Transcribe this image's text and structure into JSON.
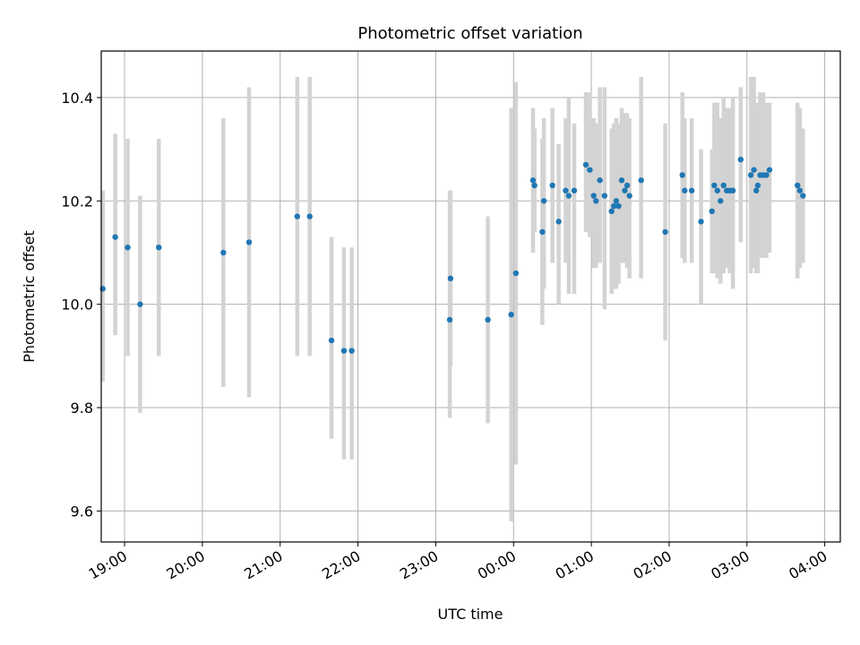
{
  "chart_data": {
    "type": "scatter",
    "title": "Photometric offset variation",
    "xlabel": "UTC time",
    "ylabel": "Photometric offset",
    "grid": true,
    "x_unit": "hours since 18:00 UTC",
    "xlim": [
      0.7,
      10.2
    ],
    "ylim": [
      9.54,
      10.49
    ],
    "x_ticks": [
      {
        "value": 1,
        "label": "19:00"
      },
      {
        "value": 2,
        "label": "20:00"
      },
      {
        "value": 3,
        "label": "21:00"
      },
      {
        "value": 4,
        "label": "22:00"
      },
      {
        "value": 5,
        "label": "23:00"
      },
      {
        "value": 6,
        "label": "00:00"
      },
      {
        "value": 7,
        "label": "01:00"
      },
      {
        "value": 8,
        "label": "02:00"
      },
      {
        "value": 9,
        "label": "03:00"
      },
      {
        "value": 10,
        "label": "04:00"
      }
    ],
    "y_ticks": [
      {
        "value": 9.6,
        "label": "9.6"
      },
      {
        "value": 9.8,
        "label": "9.8"
      },
      {
        "value": 10.0,
        "label": "10.0"
      },
      {
        "value": 10.2,
        "label": "10.2"
      },
      {
        "value": 10.4,
        "label": "10.4"
      }
    ],
    "series": [
      {
        "name": "offset",
        "marker_color": "#1f77b4",
        "errorbar_color": "#d3d3d3",
        "x": [
          0.72,
          0.88,
          1.04,
          1.2,
          1.44,
          2.27,
          2.6,
          3.22,
          3.38,
          3.66,
          3.82,
          3.92,
          5.18,
          5.19,
          5.67,
          5.97,
          6.03,
          6.25,
          6.27,
          6.37,
          6.39,
          6.5,
          6.58,
          6.67,
          6.71,
          6.78,
          6.93,
          6.98,
          7.03,
          7.06,
          7.11,
          7.17,
          7.26,
          7.29,
          7.32,
          7.35,
          7.39,
          7.43,
          7.46,
          7.49,
          7.64,
          7.95,
          8.17,
          8.2,
          8.29,
          8.41,
          8.55,
          8.58,
          8.62,
          8.66,
          8.7,
          8.74,
          8.78,
          8.82,
          8.92,
          9.05,
          9.09,
          9.12,
          9.14,
          9.17,
          9.21,
          9.25,
          9.29,
          9.65,
          9.68,
          9.72
        ],
        "y": [
          10.03,
          10.13,
          10.11,
          10.0,
          10.11,
          10.1,
          10.12,
          10.17,
          10.17,
          9.93,
          9.91,
          9.91,
          9.97,
          10.05,
          9.97,
          9.98,
          10.06,
          10.24,
          10.23,
          10.14,
          10.2,
          10.23,
          10.16,
          10.22,
          10.21,
          10.22,
          10.27,
          10.26,
          10.21,
          10.2,
          10.24,
          10.21,
          10.18,
          10.19,
          10.2,
          10.19,
          10.24,
          10.22,
          10.23,
          10.21,
          10.24,
          10.14,
          10.25,
          10.22,
          10.22,
          10.16,
          10.18,
          10.23,
          10.22,
          10.2,
          10.23,
          10.22,
          10.22,
          10.22,
          10.28,
          10.25,
          10.26,
          10.22,
          10.23,
          10.25,
          10.25,
          10.25,
          10.26,
          10.23,
          10.22,
          10.21
        ],
        "err_low": [
          9.85,
          9.94,
          9.9,
          9.79,
          9.9,
          9.84,
          9.82,
          9.9,
          9.9,
          9.74,
          9.7,
          9.7,
          9.78,
          9.88,
          9.77,
          9.58,
          9.69,
          10.1,
          10.14,
          9.96,
          10.03,
          10.08,
          10.0,
          10.08,
          10.02,
          10.02,
          10.14,
          10.13,
          10.07,
          10.07,
          10.08,
          9.99,
          10.02,
          10.03,
          10.03,
          10.04,
          10.08,
          10.08,
          10.07,
          10.05,
          10.05,
          9.93,
          10.09,
          10.08,
          10.08,
          10.0,
          10.06,
          10.06,
          10.05,
          10.04,
          10.06,
          10.07,
          10.06,
          10.03,
          10.12,
          10.06,
          10.07,
          10.06,
          10.06,
          10.09,
          10.09,
          10.09,
          10.1,
          10.05,
          10.07,
          10.08
        ],
        "err_high": [
          10.22,
          10.33,
          10.32,
          10.21,
          10.32,
          10.36,
          10.42,
          10.44,
          10.44,
          10.13,
          10.11,
          10.11,
          10.22,
          10.22,
          10.17,
          10.38,
          10.43,
          10.38,
          10.34,
          10.32,
          10.36,
          10.38,
          10.31,
          10.36,
          10.4,
          10.35,
          10.41,
          10.41,
          10.36,
          10.35,
          10.42,
          10.42,
          10.34,
          10.35,
          10.36,
          10.35,
          10.38,
          10.37,
          10.37,
          10.36,
          10.44,
          10.35,
          10.41,
          10.36,
          10.36,
          10.3,
          10.3,
          10.39,
          10.39,
          10.36,
          10.4,
          10.38,
          10.38,
          10.4,
          10.42,
          10.44,
          10.44,
          10.38,
          10.39,
          10.41,
          10.41,
          10.39,
          10.39,
          10.39,
          10.38,
          10.34
        ]
      }
    ]
  }
}
